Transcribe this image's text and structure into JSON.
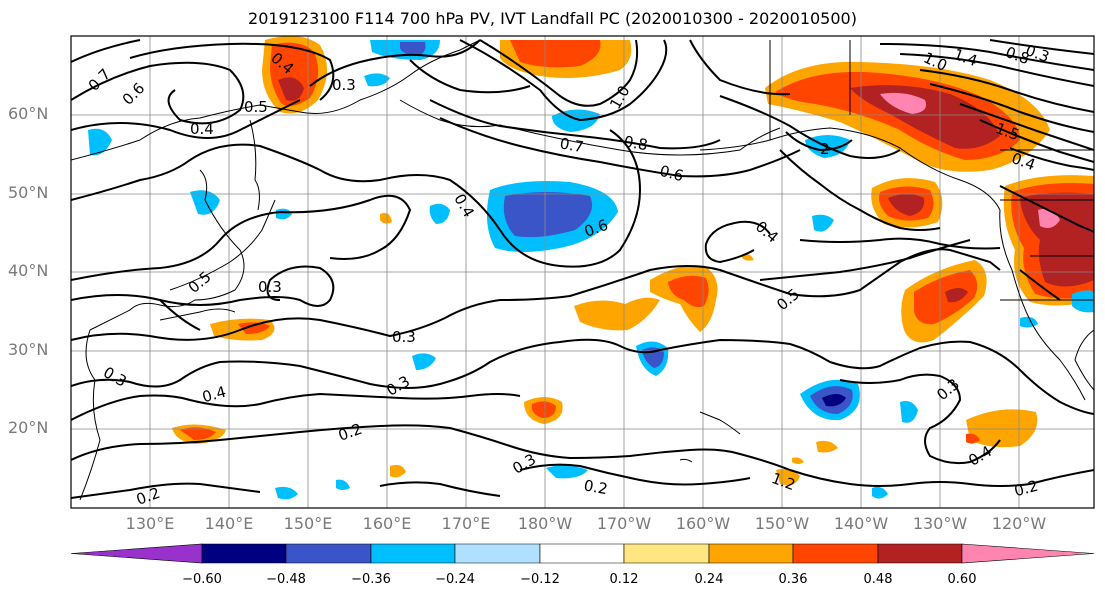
{
  "title": "2019123100 F114 700 hPa PV, IVT Landfall PC (2020010300 - 2020010500)",
  "lat_labels": [
    "60°N",
    "50°N",
    "40°N",
    "30°N",
    "20°N"
  ],
  "lon_labels": [
    "130°E",
    "140°E",
    "150°E",
    "160°E",
    "170°E",
    "180°W",
    "170°W",
    "160°W",
    "150°W",
    "140°W",
    "130°W",
    "120°W"
  ],
  "contour_labels": [
    "0.7",
    "0.6",
    "0.4",
    "0.3",
    "0.5",
    "0.4",
    "0.7",
    "0.8",
    "0.6",
    "0.4",
    "0.6",
    "0.4",
    "0.5",
    "0.3",
    "0.5",
    "0.3",
    "0.3",
    "0.4",
    "0.3",
    "0.2",
    "0.3",
    "0.2",
    "0.2",
    "0.3",
    "0.4",
    "0.2",
    "1.2",
    "1.4",
    "1.0",
    "1.5",
    "0.4",
    "2",
    "1.0",
    "0.8",
    "0.3"
  ],
  "colorbar": {
    "ticks": [
      "−0.60",
      "−0.48",
      "−0.36",
      "−0.24",
      "−0.12",
      "0.12",
      "0.24",
      "0.36",
      "0.48",
      "0.60"
    ],
    "colors": [
      "#9932cc",
      "#000080",
      "#3a55c8",
      "#00bfff",
      "#b0e0ff",
      "#ffffff",
      "#ffe680",
      "#ffa500",
      "#ff4500",
      "#b22222",
      "#ff85b0"
    ]
  }
}
